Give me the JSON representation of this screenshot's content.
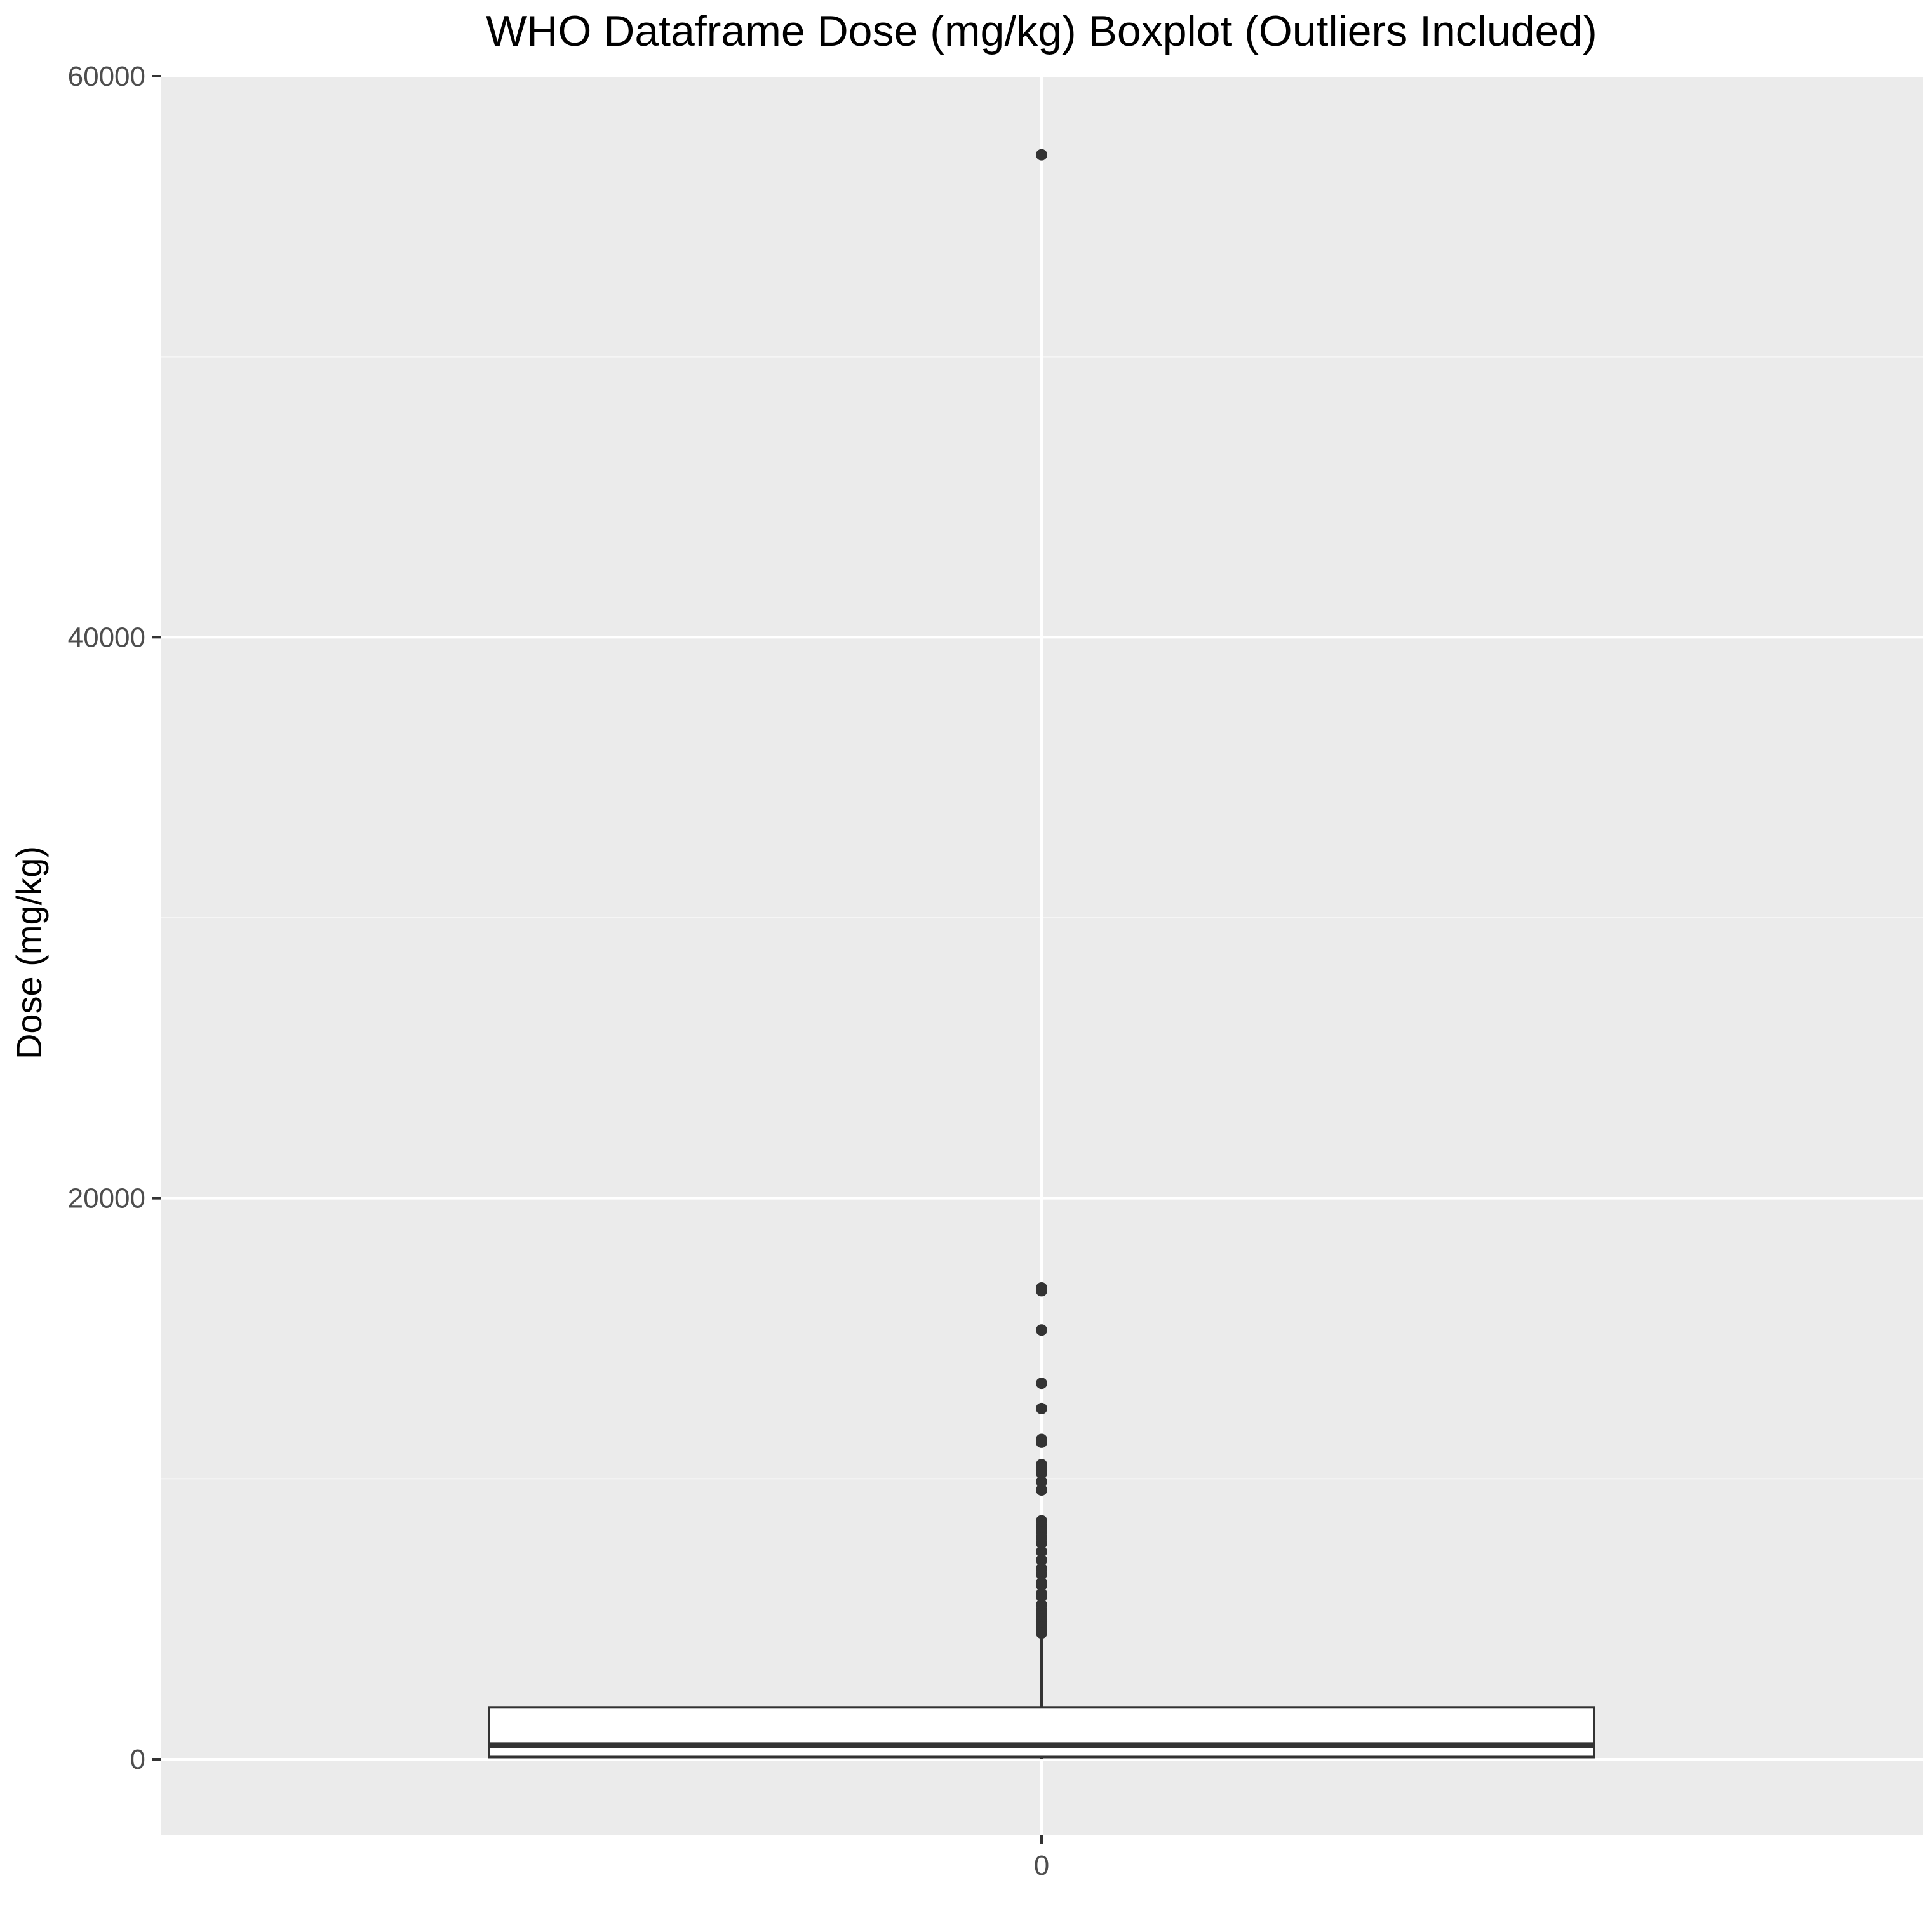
{
  "chart_data": {
    "type": "boxplot",
    "title": "WHO Dataframe Dose (mg/kg) Boxplot (Outliers Included)",
    "xlabel": "",
    "ylabel": "Dose (mg/kg)",
    "categories": [
      "0"
    ],
    "y_ticks": [
      "0",
      "20000",
      "40000",
      "60000"
    ],
    "y_tick_values": [
      0,
      20000,
      40000,
      60000
    ],
    "ylim": [
      -2900,
      60000
    ],
    "grid": true,
    "box": {
      "category": "0",
      "min": 0,
      "q1": 80,
      "median": 500,
      "q3": 1850,
      "whisker_high": 4350
    },
    "outliers": [
      57200,
      16800,
      16700,
      15300,
      13400,
      12500,
      11400,
      11300,
      10500,
      10400,
      10300,
      10200,
      9900,
      9600,
      8500,
      8300,
      8100,
      7900,
      7700,
      7400,
      7100,
      6800,
      6600,
      6300,
      6200,
      5900,
      5800,
      5500,
      5300,
      5200,
      5100,
      5000,
      4900,
      4800,
      4700,
      4600,
      4500
    ],
    "colors": {
      "panel_background": "#ebebeb",
      "grid_major": "#ffffff",
      "grid_minor": "#f5f5f5",
      "box_fill": "#ffffff",
      "box_line": "#333333",
      "outlier": "#333333",
      "tick_text": "#4d4d4d"
    }
  }
}
